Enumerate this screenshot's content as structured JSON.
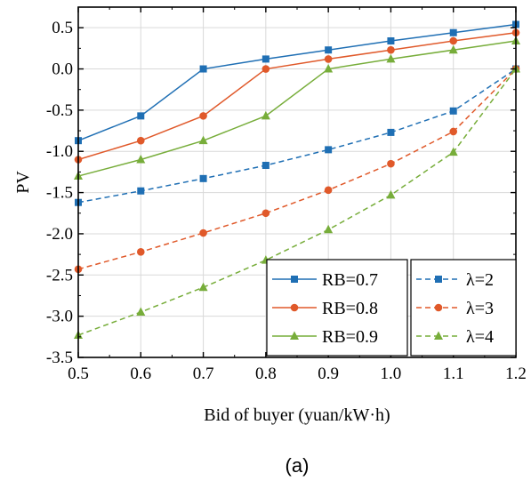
{
  "chart_data": {
    "type": "line",
    "xlabel": "Bid of buyer (yuan/kW·h)",
    "ylabel": "PV",
    "caption": "(a)",
    "xlim": [
      0.5,
      1.2
    ],
    "ylim": [
      -3.5,
      0.75
    ],
    "x_ticks": [
      "0.5",
      "0.6",
      "0.7",
      "0.8",
      "0.9",
      "1.0",
      "1.1",
      "1.2"
    ],
    "y_ticks": [
      "0.5",
      "0.0",
      "-0.5",
      "-1.0",
      "-1.5",
      "-2.0",
      "-2.5",
      "-3.0",
      "-3.5"
    ],
    "x": [
      0.5,
      0.6,
      0.7,
      0.8,
      0.9,
      1.0,
      1.1,
      1.2
    ],
    "grid": true,
    "series": [
      {
        "name": "RB=0.7",
        "color": "#1f6fb4",
        "marker": "square",
        "dash": "solid",
        "values": [
          -0.87,
          -0.57,
          0.0,
          0.12,
          0.23,
          0.34,
          0.44,
          0.54
        ]
      },
      {
        "name": "RB=0.8",
        "color": "#e0592a",
        "marker": "circle",
        "dash": "solid",
        "values": [
          -1.1,
          -0.87,
          -0.57,
          0.0,
          0.12,
          0.23,
          0.34,
          0.44
        ]
      },
      {
        "name": "RB=0.9",
        "color": "#77ad3a",
        "marker": "triangle",
        "dash": "solid",
        "values": [
          -1.3,
          -1.1,
          -0.87,
          -0.57,
          0.0,
          0.12,
          0.23,
          0.34
        ]
      },
      {
        "name": "λ=2",
        "color": "#1f6fb4",
        "marker": "square",
        "dash": "dashed",
        "values": [
          -1.62,
          -1.48,
          -1.33,
          -1.17,
          -0.98,
          -0.77,
          -0.51,
          0.0
        ]
      },
      {
        "name": "λ=3",
        "color": "#e0592a",
        "marker": "circle",
        "dash": "dashed",
        "values": [
          -2.43,
          -2.22,
          -1.99,
          -1.75,
          -1.47,
          -1.15,
          -0.76,
          0.0
        ]
      },
      {
        "name": "λ=4",
        "color": "#77ad3a",
        "marker": "triangle",
        "dash": "dashed",
        "values": [
          -3.23,
          -2.95,
          -2.65,
          -2.32,
          -1.95,
          -1.53,
          -1.01,
          0.0
        ]
      }
    ],
    "legend": {
      "placement": "bottom-right",
      "columns": 2
    }
  }
}
